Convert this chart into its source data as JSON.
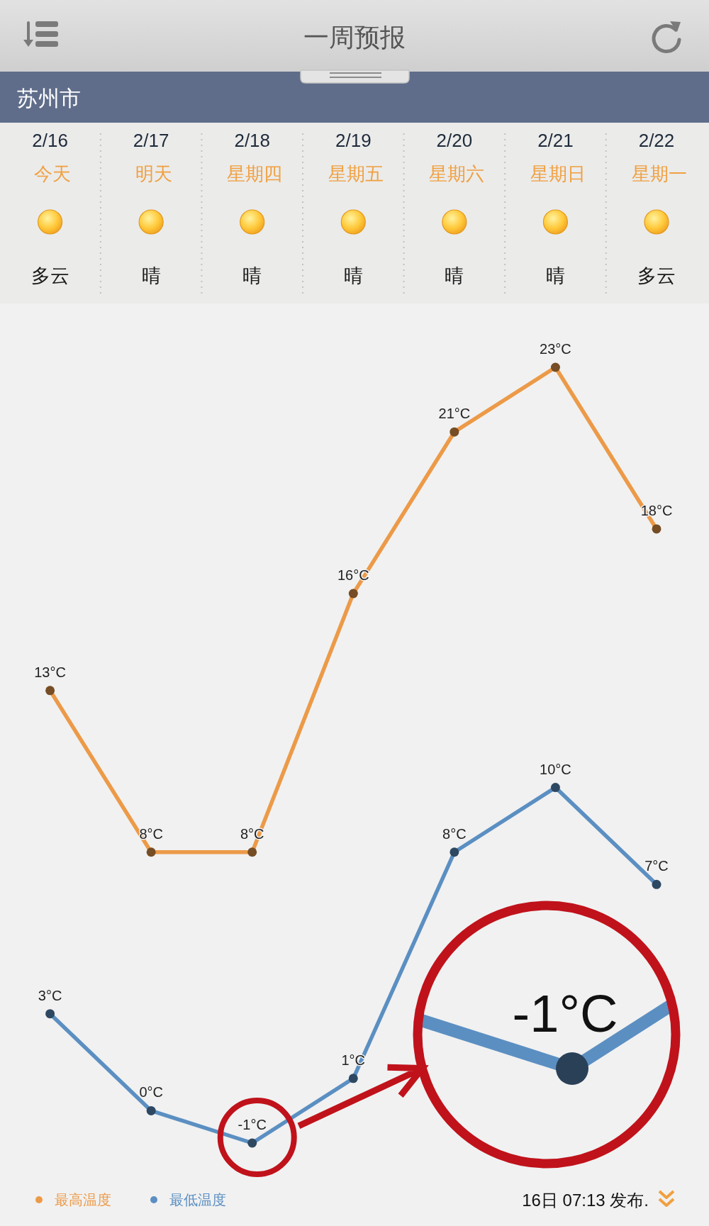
{
  "chart_data": {
    "type": "line",
    "title": "一周预报",
    "subtitle": "苏州市",
    "categories": [
      "2/16\n今天",
      "2/17\n明天",
      "2/18\n星期四",
      "2/19\n星期五",
      "2/20\n星期六",
      "2/21\n星期日",
      "2/22\n星期一"
    ],
    "series": [
      {
        "name": "最高温度",
        "color": "#ec9a48",
        "values": [
          13,
          8,
          8,
          16,
          21,
          23,
          18
        ],
        "value_labels": [
          "13°C",
          "8°C",
          "8°C",
          "16°C",
          "21°C",
          "23°C",
          "18°C"
        ]
      },
      {
        "name": "最低温度",
        "color": "#5b8fc2",
        "values": [
          3,
          0,
          -1,
          1,
          8,
          10,
          7
        ],
        "value_labels": [
          "3°C",
          "0°C",
          "-1°C",
          "1°C",
          "8°C",
          "10°C",
          "7°C"
        ]
      }
    ],
    "marker": "circle",
    "line_style": "solid",
    "legend": "bottom left",
    "annotations": [
      "多云",
      "晴",
      "晴",
      "晴",
      "晴",
      "晴",
      "多云",
      "-1°C",
      "16日 07:13 发布."
    ]
  }
}
